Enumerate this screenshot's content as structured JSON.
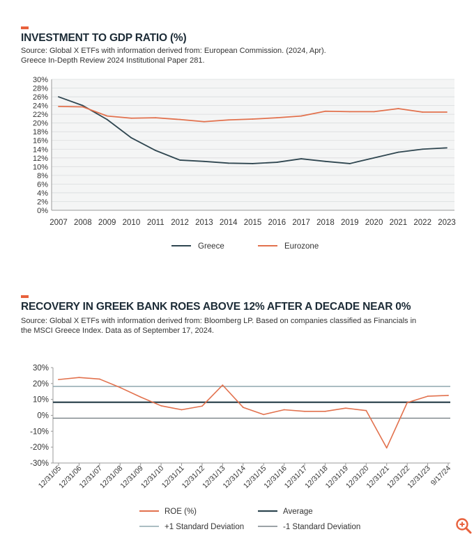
{
  "colors": {
    "accent": "#e8613c",
    "greece": "#2f4650",
    "eurozone": "#e2714d",
    "roe": "#e2714d",
    "average": "#2f4650",
    "plus_sd": "#8fa7ad",
    "minus_sd": "#5f6b70",
    "plot_bg": "#f4f5f5"
  },
  "chart_data": [
    {
      "type": "line",
      "title": "INVESTMENT TO GDP RATIO (%)",
      "source_lines": [
        "Source: Global X ETFs with information derived from: European Commission. (2024, Apr).",
        "Greece In-Depth Review 2024 Institutional Paper 281."
      ],
      "x": [
        "2007",
        "2008",
        "2009",
        "2010",
        "2011",
        "2012",
        "2013",
        "2014",
        "2015",
        "2016",
        "2017",
        "2018",
        "2019",
        "2020",
        "2021",
        "2022",
        "2023"
      ],
      "series": [
        {
          "name": "Greece",
          "values": [
            26.0,
            24.0,
            20.8,
            16.6,
            13.7,
            11.5,
            11.2,
            10.8,
            10.7,
            11.0,
            11.8,
            11.2,
            10.7,
            12.0,
            13.3,
            14.0,
            14.3
          ]
        },
        {
          "name": "Eurozone",
          "values": [
            23.8,
            23.7,
            21.6,
            21.1,
            21.2,
            20.8,
            20.3,
            20.7,
            20.9,
            21.2,
            21.6,
            22.7,
            22.6,
            22.6,
            23.3,
            22.5,
            22.5
          ]
        }
      ],
      "yticks": [
        "30%",
        "28%",
        "26%",
        "24%",
        "22%",
        "20%",
        "18%",
        "16%",
        "14%",
        "12%",
        "10%",
        "8%",
        "6%",
        "4%",
        "2%",
        "0%"
      ],
      "ylim": [
        0,
        30
      ],
      "legend": [
        "Greece",
        "Eurozone"
      ],
      "legend_position": "bottom"
    },
    {
      "type": "line",
      "title": "RECOVERY IN GREEK BANK ROES ABOVE 12% AFTER A DECADE NEAR 0%",
      "source_lines": [
        "Source: Global X ETFs with information derived from: Bloomberg LP. Based on companies classified as Financials in",
        "the MSCI Greece Index. Data as of September 17, 2024."
      ],
      "x": [
        "12/31/05",
        "12/31/06",
        "12/31/07",
        "12/31/08",
        "12/31/09",
        "12/31/10",
        "12/31/11",
        "12/31/12",
        "12/31/13",
        "12/31/14",
        "12/31/15",
        "12/31/16",
        "12/31/17",
        "12/31/18",
        "12/31/19",
        "12/31/20",
        "12/31/21",
        "12/31/22",
        "12/31/23",
        "9/17/24"
      ],
      "series": [
        {
          "name": "ROE (%)",
          "values": [
            22.5,
            23.8,
            22.8,
            17.5,
            11.5,
            6.0,
            3.5,
            5.8,
            19.0,
            5.0,
            0.5,
            3.5,
            2.5,
            2.5,
            4.5,
            3.0,
            -20.5,
            8.0,
            12.0,
            12.5
          ]
        }
      ],
      "reference_lines": [
        {
          "name": "Average",
          "value": 8.2
        },
        {
          "name": "+1 Standard Deviation",
          "value": 18.2
        },
        {
          "name": "-1 Standard Deviation",
          "value": -1.8
        }
      ],
      "yticks": [
        "30%",
        "20%",
        "10%",
        "0%",
        "-10%",
        "-20%",
        "-30%"
      ],
      "ylim": [
        -30,
        30
      ],
      "legend": [
        "ROE (%)",
        "Average",
        "+1 Standard Deviation",
        "-1 Standard Deviation"
      ],
      "legend_position": "bottom"
    }
  ]
}
